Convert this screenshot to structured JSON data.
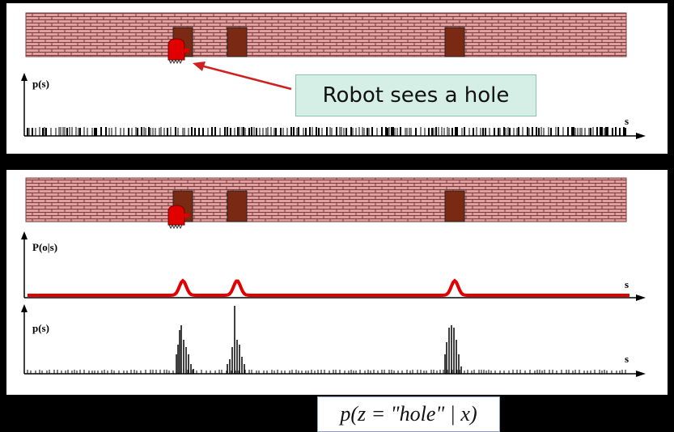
{
  "callout": {
    "text": "Robot sees a hole"
  },
  "formula": {
    "text": "p(z = \"hole\" | x)"
  },
  "axes": {
    "top_ylabel": "p(s)",
    "top_xlabel": "s",
    "obs_ylabel": "P(o|s)",
    "obs_xlabel": "s",
    "post_ylabel": "p(s)",
    "post_xlabel": "s"
  },
  "colors": {
    "brick": "#e0a0a0",
    "mortar": "#7a3a3a",
    "door": "#7a2a12",
    "robot": "#e00000",
    "arrow": "#d02020",
    "likelihood": "#e00000"
  },
  "icons": [
    "brick-wall",
    "door-icon",
    "robot-icon",
    "arrow-icon"
  ]
}
